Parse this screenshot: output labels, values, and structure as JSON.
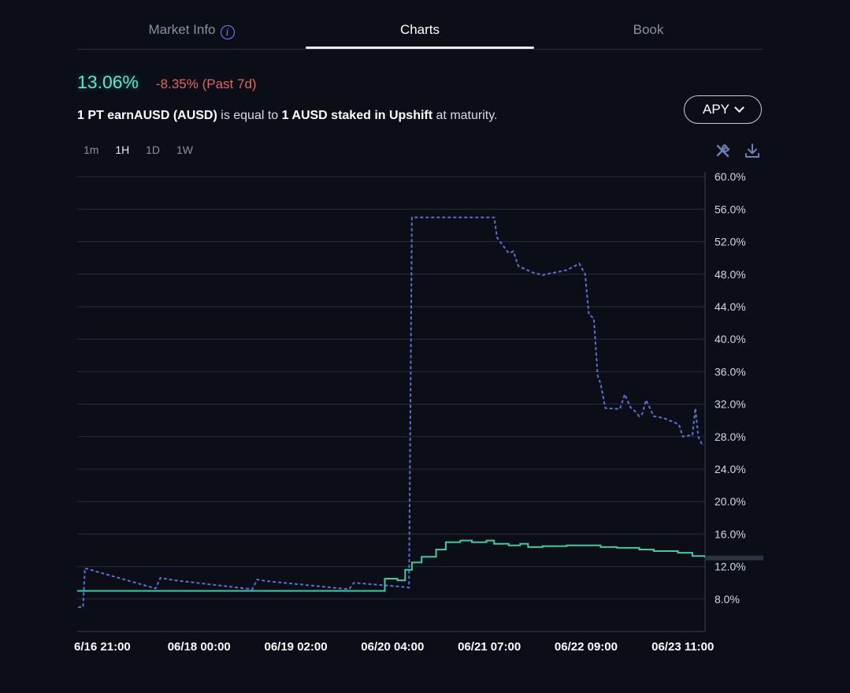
{
  "tabs": [
    {
      "label": "Market Info"
    },
    {
      "label": "Charts"
    },
    {
      "label": "Book"
    }
  ],
  "header": {
    "rate": "13.06%",
    "change": "-8.35% (Past 7d)",
    "desc_bold1": "1 PT earnAUSD (AUSD)",
    "desc_mid": " is equal to ",
    "desc_bold2": "1 AUSD staked in Upshift",
    "desc_end": " at maturity."
  },
  "apy_button": {
    "label": "APY"
  },
  "intervals": [
    "1m",
    "1H",
    "1D",
    "1W"
  ],
  "active_interval": "1H",
  "icons": {
    "info": "info-icon",
    "tools": "tools-icon",
    "download": "download-icon"
  },
  "colors": {
    "implied": "#5b6fd6",
    "underlying": "#3ec9a7",
    "negative": "#e06464",
    "grid": "#262c3f"
  },
  "chart_data": {
    "type": "line",
    "y_ticks": [
      "60.0%",
      "56.0%",
      "52.0%",
      "48.0%",
      "44.0%",
      "40.0%",
      "36.0%",
      "32.0%",
      "28.0%",
      "24.0%",
      "20.0%",
      "16.0%",
      "12.0%",
      "8.0%"
    ],
    "y_range": [
      4.0,
      60.6
    ],
    "x_ticks": [
      "6/16 21:00",
      "06/18 00:00",
      "06/19 02:00",
      "06/20 04:00",
      "06/21 07:00",
      "06/22 09:00",
      "06/23 11:00"
    ],
    "x_tick_positions": [
      0.0,
      1.0,
      2.0,
      3.0,
      4.0,
      5.0,
      6.0
    ],
    "x_range": [
      -0.26,
      6.23
    ],
    "current_value_marker": 13.06,
    "series": [
      {
        "style": "dashed",
        "points": [
          [
            -0.25,
            7.0
          ],
          [
            -0.2,
            7.0
          ],
          [
            -0.18,
            11.8
          ],
          [
            0.55,
            9.3
          ],
          [
            0.6,
            10.6
          ],
          [
            0.75,
            10.3
          ],
          [
            1.55,
            9.2
          ],
          [
            1.6,
            10.4
          ],
          [
            1.7,
            10.2
          ],
          [
            2.55,
            9.2
          ],
          [
            2.6,
            10.0
          ],
          [
            3.1,
            9.5
          ],
          [
            3.17,
            9.4
          ],
          [
            3.2,
            55.0
          ],
          [
            3.5,
            55.0
          ],
          [
            4.05,
            55.0
          ],
          [
            4.08,
            52.5
          ],
          [
            4.2,
            50.6
          ],
          [
            4.25,
            50.8
          ],
          [
            4.3,
            49.0
          ],
          [
            4.45,
            48.2
          ],
          [
            4.55,
            47.9
          ],
          [
            4.8,
            48.5
          ],
          [
            4.93,
            49.3
          ],
          [
            4.99,
            48.0
          ],
          [
            5.03,
            43.0
          ],
          [
            5.08,
            42.6
          ],
          [
            5.12,
            35.5
          ],
          [
            5.15,
            34.5
          ],
          [
            5.2,
            31.5
          ],
          [
            5.35,
            31.4
          ],
          [
            5.4,
            33.2
          ],
          [
            5.46,
            31.6
          ],
          [
            5.5,
            31.2
          ],
          [
            5.55,
            30.5
          ],
          [
            5.58,
            30.8
          ],
          [
            5.62,
            32.5
          ],
          [
            5.66,
            31.5
          ],
          [
            5.7,
            30.5
          ],
          [
            5.8,
            30.3
          ],
          [
            5.96,
            29.5
          ],
          [
            6.0,
            28.0
          ],
          [
            6.1,
            28.2
          ],
          [
            6.13,
            31.5
          ],
          [
            6.16,
            28.0
          ],
          [
            6.2,
            27.0
          ],
          [
            6.22,
            27.0
          ]
        ]
      },
      {
        "style": "solid",
        "steps": [
          [
            -0.26,
            9.0
          ],
          [
            2.92,
            10.5
          ],
          [
            3.05,
            10.3
          ],
          [
            3.13,
            11.6
          ],
          [
            3.2,
            12.5
          ],
          [
            3.3,
            13.2
          ],
          [
            3.45,
            14.1
          ],
          [
            3.55,
            15.0
          ],
          [
            3.7,
            15.2
          ],
          [
            3.82,
            15.0
          ],
          [
            3.97,
            15.2
          ],
          [
            4.05,
            14.8
          ],
          [
            4.2,
            14.6
          ],
          [
            4.32,
            14.8
          ],
          [
            4.4,
            14.4
          ],
          [
            4.55,
            14.5
          ],
          [
            4.8,
            14.6
          ],
          [
            5.15,
            14.4
          ],
          [
            5.32,
            14.3
          ],
          [
            5.55,
            14.1
          ],
          [
            5.7,
            13.9
          ],
          [
            5.95,
            13.7
          ],
          [
            6.1,
            13.3
          ],
          [
            6.23,
            13.1
          ]
        ]
      }
    ]
  }
}
